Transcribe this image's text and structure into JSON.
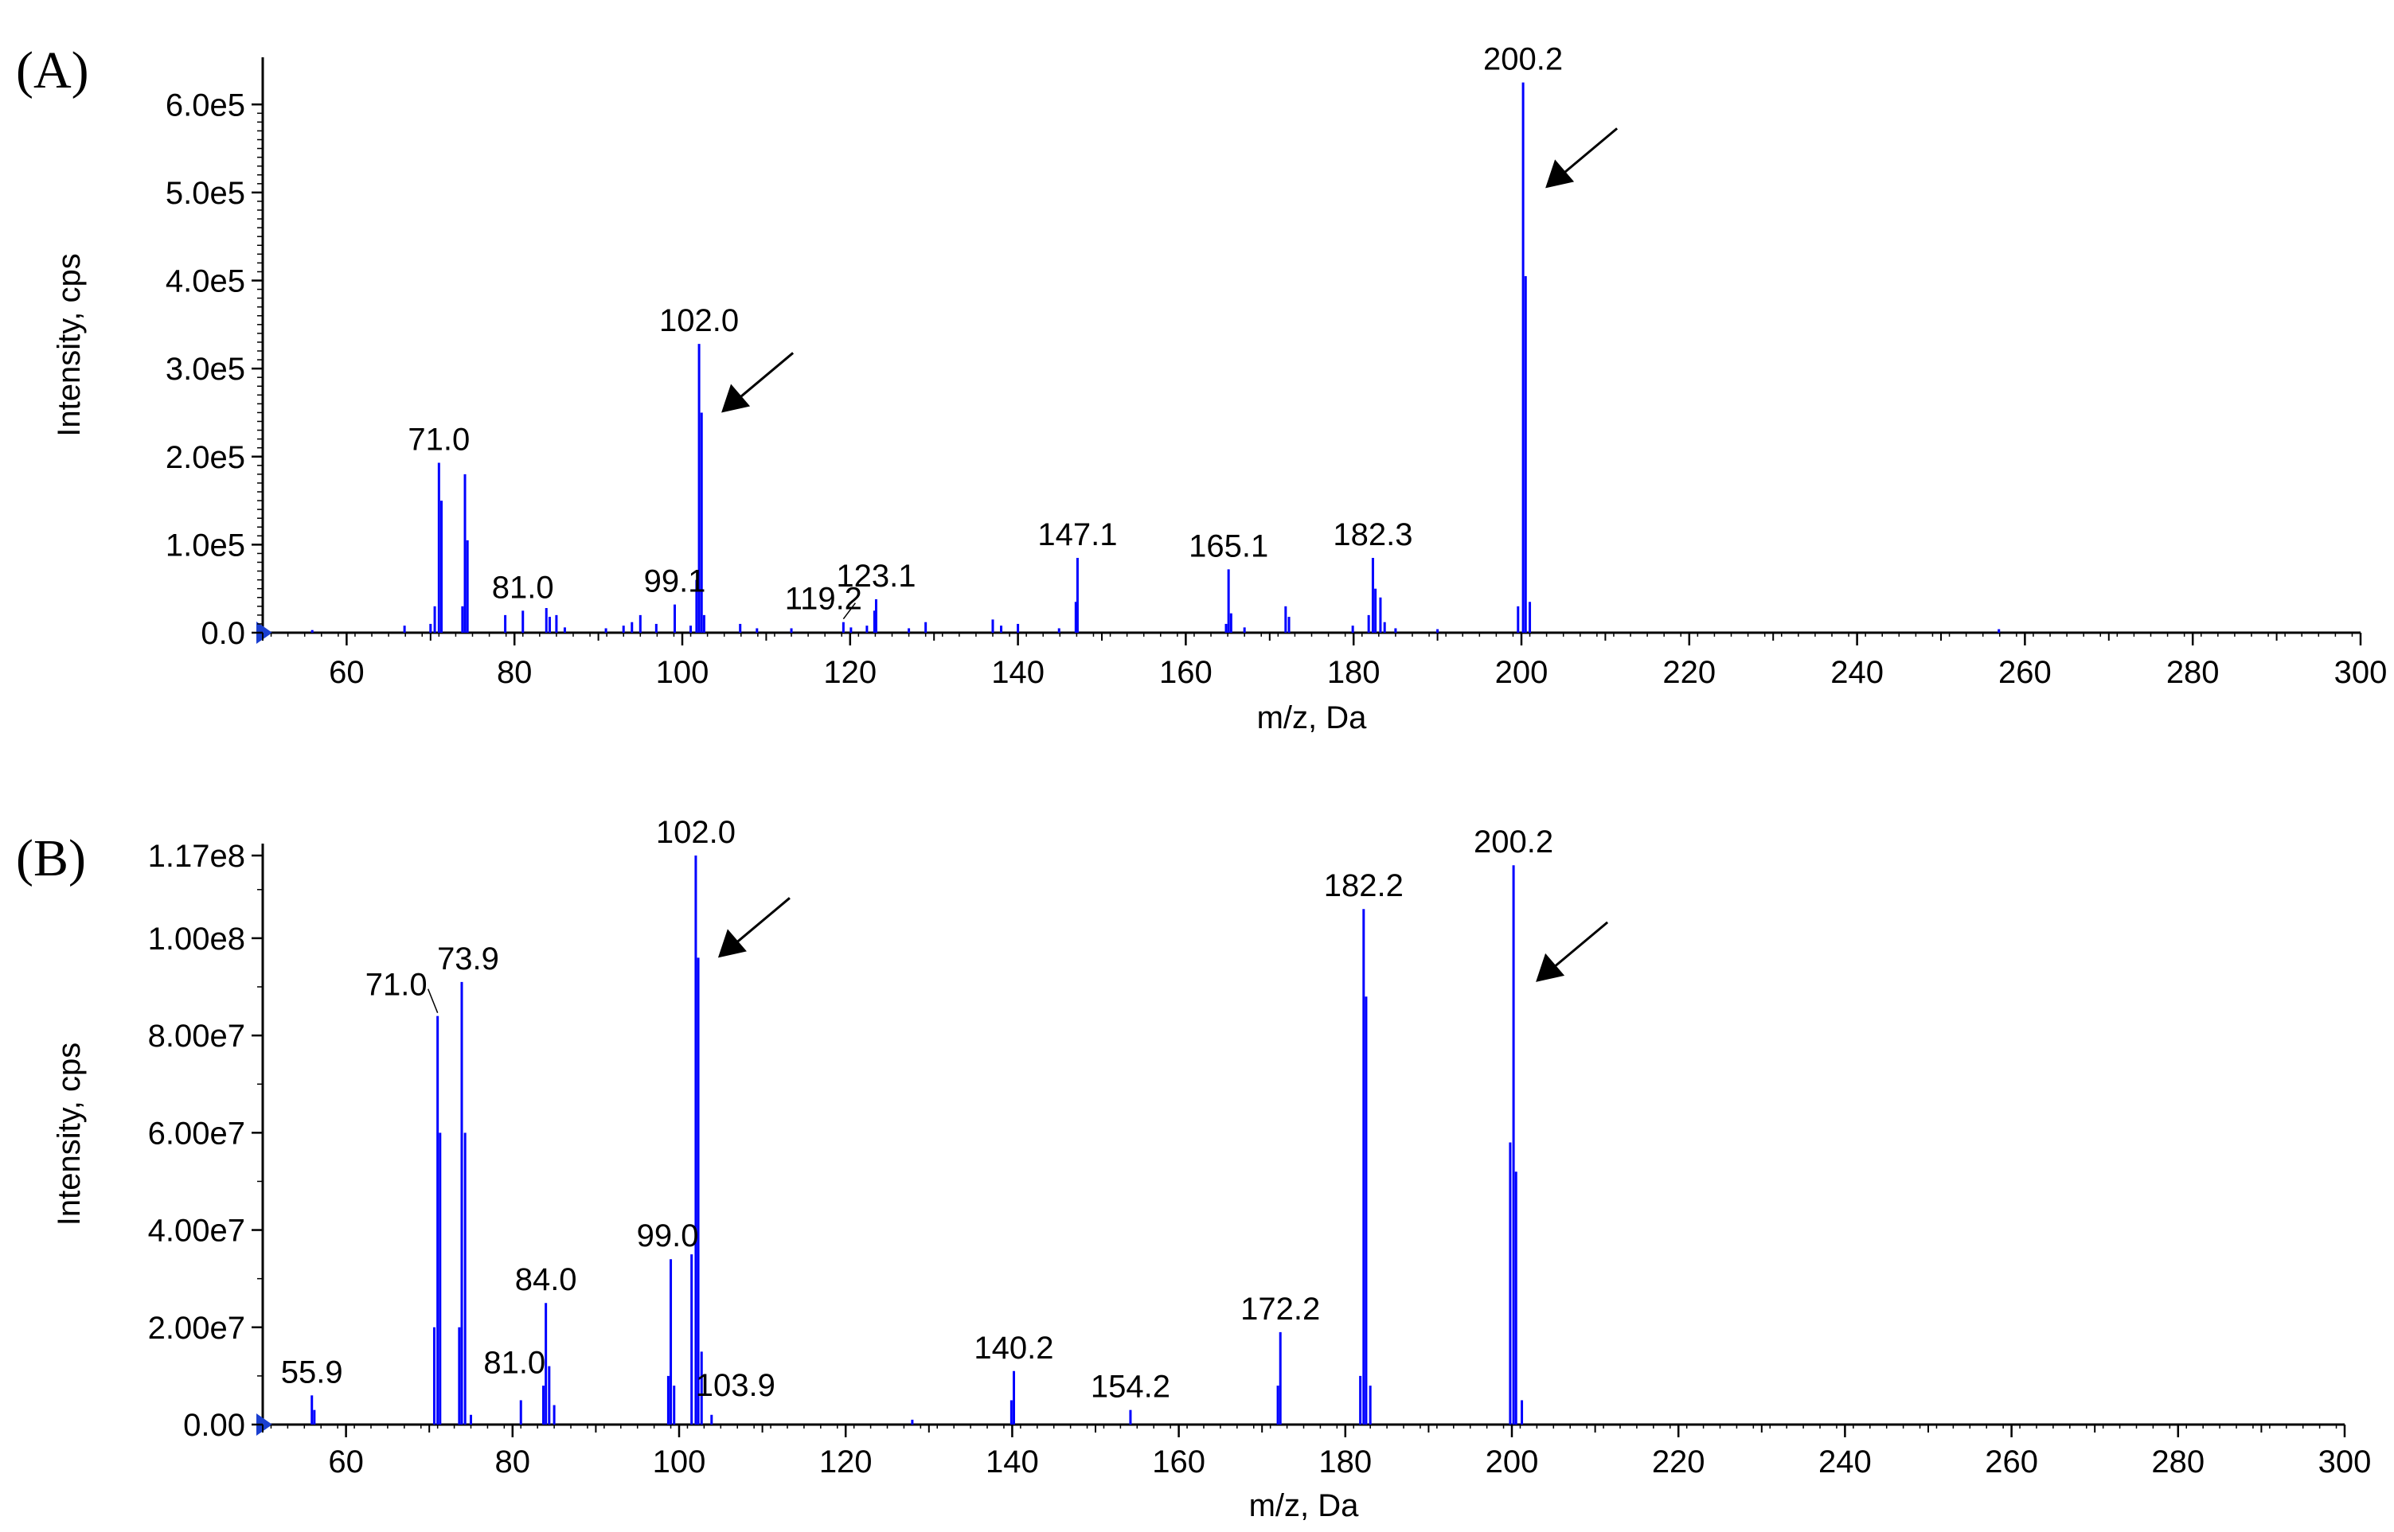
{
  "chart_data": [
    {
      "panel_label": "(A)",
      "type": "bar",
      "xlabel": "m/z, Da",
      "ylabel": "Intensity, cps",
      "xlim": [
        50,
        300
      ],
      "ylim": [
        0,
        620000
      ],
      "xticks": [
        60,
        80,
        100,
        120,
        140,
        160,
        180,
        200,
        220,
        240,
        260,
        280,
        300
      ],
      "yticks": [
        {
          "value": 0,
          "label": "0.0"
        },
        {
          "value": 100000,
          "label": "1.0e5"
        },
        {
          "value": 200000,
          "label": "2.0e5"
        },
        {
          "value": 300000,
          "label": "3.0e5"
        },
        {
          "value": 400000,
          "label": "4.0e5"
        },
        {
          "value": 500000,
          "label": "5.0e5"
        },
        {
          "value": 600000,
          "label": "6.0e5"
        }
      ],
      "peaks": [
        {
          "x": 55.9,
          "y": 3000
        },
        {
          "x": 66.9,
          "y": 8000
        },
        {
          "x": 70.0,
          "y": 10000
        },
        {
          "x": 70.5,
          "y": 30000
        },
        {
          "x": 71.0,
          "y": 193000
        },
        {
          "x": 71.3,
          "y": 150000
        },
        {
          "x": 73.8,
          "y": 30000
        },
        {
          "x": 74.1,
          "y": 180000
        },
        {
          "x": 74.4,
          "y": 105000
        },
        {
          "x": 78.9,
          "y": 20000
        },
        {
          "x": 81.0,
          "y": 25000
        },
        {
          "x": 83.8,
          "y": 28000
        },
        {
          "x": 84.2,
          "y": 18000
        },
        {
          "x": 85.0,
          "y": 20000
        },
        {
          "x": 86.0,
          "y": 6000
        },
        {
          "x": 90.9,
          "y": 5000
        },
        {
          "x": 93.0,
          "y": 8000
        },
        {
          "x": 94.0,
          "y": 12000
        },
        {
          "x": 95.0,
          "y": 20000
        },
        {
          "x": 96.9,
          "y": 10000
        },
        {
          "x": 99.1,
          "y": 32000
        },
        {
          "x": 101.0,
          "y": 8000
        },
        {
          "x": 101.7,
          "y": 60000
        },
        {
          "x": 102.0,
          "y": 328000
        },
        {
          "x": 102.3,
          "y": 250000
        },
        {
          "x": 102.6,
          "y": 20000
        },
        {
          "x": 106.9,
          "y": 10000
        },
        {
          "x": 108.9,
          "y": 5000
        },
        {
          "x": 113.0,
          "y": 5000
        },
        {
          "x": 119.2,
          "y": 12000
        },
        {
          "x": 120.1,
          "y": 6000
        },
        {
          "x": 122.0,
          "y": 8000
        },
        {
          "x": 122.9,
          "y": 25000
        },
        {
          "x": 123.1,
          "y": 38000
        },
        {
          "x": 127.0,
          "y": 5000
        },
        {
          "x": 129.0,
          "y": 12000
        },
        {
          "x": 137.0,
          "y": 15000
        },
        {
          "x": 138.0,
          "y": 8000
        },
        {
          "x": 140.0,
          "y": 10000
        },
        {
          "x": 144.9,
          "y": 5000
        },
        {
          "x": 146.9,
          "y": 35000
        },
        {
          "x": 147.1,
          "y": 85000
        },
        {
          "x": 164.8,
          "y": 10000
        },
        {
          "x": 165.1,
          "y": 72000
        },
        {
          "x": 165.4,
          "y": 22000
        },
        {
          "x": 167.0,
          "y": 6000
        },
        {
          "x": 171.9,
          "y": 30000
        },
        {
          "x": 172.3,
          "y": 18000
        },
        {
          "x": 179.9,
          "y": 8000
        },
        {
          "x": 181.8,
          "y": 20000
        },
        {
          "x": 182.3,
          "y": 85000
        },
        {
          "x": 182.6,
          "y": 50000
        },
        {
          "x": 183.2,
          "y": 40000
        },
        {
          "x": 183.7,
          "y": 12000
        },
        {
          "x": 185.0,
          "y": 5000
        },
        {
          "x": 190.0,
          "y": 4000
        },
        {
          "x": 199.6,
          "y": 30000
        },
        {
          "x": 200.2,
          "y": 625000
        },
        {
          "x": 200.5,
          "y": 405000
        },
        {
          "x": 201.0,
          "y": 35000
        },
        {
          "x": 256.9,
          "y": 4000
        }
      ],
      "peak_labels": [
        {
          "x": 71.0,
          "y": 193000,
          "text": "71.0"
        },
        {
          "x": 81.0,
          "y": 25000,
          "text": "81.0"
        },
        {
          "x": 99.1,
          "y": 32000,
          "text": "99.1"
        },
        {
          "x": 102.0,
          "y": 328000,
          "text": "102.0"
        },
        {
          "x": 119.2,
          "y": 12000,
          "text": "119.2"
        },
        {
          "x": 123.1,
          "y": 38000,
          "text": "123.1"
        },
        {
          "x": 147.1,
          "y": 85000,
          "text": "147.1"
        },
        {
          "x": 165.1,
          "y": 72000,
          "text": "165.1"
        },
        {
          "x": 182.3,
          "y": 85000,
          "text": "182.3"
        },
        {
          "x": 200.2,
          "y": 625000,
          "text": "200.2"
        }
      ],
      "arrows": [
        {
          "x": 102.0,
          "y": 250000
        },
        {
          "x": 200.2,
          "y": 505000
        }
      ]
    },
    {
      "panel_label": "(B)",
      "type": "bar",
      "xlabel": "m/z, Da",
      "ylabel": "Intensity, cps",
      "xlim": [
        50,
        300
      ],
      "ylim": [
        0,
        117000000
      ],
      "xticks": [
        60,
        80,
        100,
        120,
        140,
        160,
        180,
        200,
        220,
        240,
        260,
        280,
        300
      ],
      "yticks": [
        {
          "value": 0,
          "label": "0.00"
        },
        {
          "value": 20000000,
          "label": "2.00e7"
        },
        {
          "value": 40000000,
          "label": "4.00e7"
        },
        {
          "value": 60000000,
          "label": "6.00e7"
        },
        {
          "value": 80000000,
          "label": "8.00e7"
        },
        {
          "value": 100000000,
          "label": "1.00e8"
        },
        {
          "value": 117000000,
          "label": "1.17e8"
        }
      ],
      "peaks": [
        {
          "x": 55.9,
          "y": 6000000
        },
        {
          "x": 56.2,
          "y": 3000000
        },
        {
          "x": 70.6,
          "y": 20000000
        },
        {
          "x": 71.0,
          "y": 84000000
        },
        {
          "x": 71.3,
          "y": 60000000
        },
        {
          "x": 73.6,
          "y": 20000000
        },
        {
          "x": 73.9,
          "y": 91000000
        },
        {
          "x": 74.3,
          "y": 60000000
        },
        {
          "x": 75.0,
          "y": 2000000
        },
        {
          "x": 81.0,
          "y": 5000000
        },
        {
          "x": 83.7,
          "y": 8000000
        },
        {
          "x": 84.0,
          "y": 25000000
        },
        {
          "x": 84.4,
          "y": 12000000
        },
        {
          "x": 85.0,
          "y": 4000000
        },
        {
          "x": 98.7,
          "y": 10000000
        },
        {
          "x": 99.0,
          "y": 34000000
        },
        {
          "x": 99.4,
          "y": 8000000
        },
        {
          "x": 101.5,
          "y": 35000000
        },
        {
          "x": 102.0,
          "y": 117000000
        },
        {
          "x": 102.3,
          "y": 96000000
        },
        {
          "x": 102.7,
          "y": 15000000
        },
        {
          "x": 103.9,
          "y": 2000000
        },
        {
          "x": 128.0,
          "y": 1000000
        },
        {
          "x": 139.9,
          "y": 5000000
        },
        {
          "x": 140.2,
          "y": 11000000
        },
        {
          "x": 154.2,
          "y": 3000000
        },
        {
          "x": 171.9,
          "y": 8000000
        },
        {
          "x": 172.2,
          "y": 19000000
        },
        {
          "x": 181.8,
          "y": 10000000
        },
        {
          "x": 182.2,
          "y": 106000000
        },
        {
          "x": 182.5,
          "y": 88000000
        },
        {
          "x": 183.0,
          "y": 8000000
        },
        {
          "x": 199.8,
          "y": 58000000
        },
        {
          "x": 200.2,
          "y": 115000000
        },
        {
          "x": 200.5,
          "y": 52000000
        },
        {
          "x": 201.2,
          "y": 5000000
        }
      ],
      "peak_labels": [
        {
          "x": 55.9,
          "y": 6000000,
          "text": "55.9"
        },
        {
          "x": 71.0,
          "y": 84000000,
          "text": "71.0"
        },
        {
          "x": 73.9,
          "y": 91000000,
          "text": "73.9"
        },
        {
          "x": 81.0,
          "y": 5000000,
          "text": "81.0"
        },
        {
          "x": 84.0,
          "y": 25000000,
          "text": "84.0"
        },
        {
          "x": 99.0,
          "y": 34000000,
          "text": "99.0"
        },
        {
          "x": 102.0,
          "y": 117000000,
          "text": "102.0"
        },
        {
          "x": 103.9,
          "y": 2000000,
          "text": "103.9"
        },
        {
          "x": 140.2,
          "y": 11000000,
          "text": "140.2"
        },
        {
          "x": 154.2,
          "y": 3000000,
          "text": "154.2"
        },
        {
          "x": 172.2,
          "y": 19000000,
          "text": "172.2"
        },
        {
          "x": 182.2,
          "y": 106000000,
          "text": "182.2"
        },
        {
          "x": 200.2,
          "y": 115000000,
          "text": "200.2"
        }
      ],
      "arrows": [
        {
          "x": 102.0,
          "y": 96000000
        },
        {
          "x": 200.2,
          "y": 91000000
        }
      ]
    }
  ]
}
